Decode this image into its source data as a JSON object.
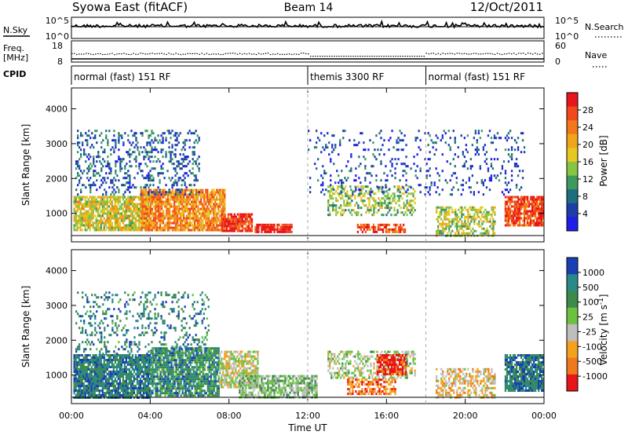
{
  "header": {
    "station": "Syowa East (fitACF)",
    "beam": "Beam 14",
    "date": "12/Oct/2011"
  },
  "sidebar": {
    "nsky_label": "N.Sky",
    "freq_label_1": "Freq.",
    "freq_label_2": "[MHz]",
    "cpid_label": "CPID",
    "nsearch_label": "N.Search",
    "nave_label": "Nave"
  },
  "panel_ticks": {
    "nsky_left": [
      "10^5",
      "10^0"
    ],
    "nsky_right": [
      "10^5",
      "10^0"
    ],
    "freq_left": [
      "18",
      "8"
    ],
    "freq_right": [
      "60",
      "0"
    ]
  },
  "cpid_segments": [
    {
      "label": "normal (fast) 151 RF",
      "start_h": 0
    },
    {
      "label": "themis 3300 RF",
      "start_h": 12
    },
    {
      "label": "normal (fast) 151 RF",
      "start_h": 18
    }
  ],
  "power_colorbar": {
    "label": "Power [dB]",
    "ticks": [
      "28",
      "24",
      "20",
      "16",
      "12",
      "8",
      "4"
    ],
    "colors": [
      "#e8151b",
      "#f0491a",
      "#f2781a",
      "#f1a51c",
      "#e6c820",
      "#86c445",
      "#3e9a5c",
      "#1d6e7f",
      "#1d3ea8",
      "#1e1ee8"
    ]
  },
  "velocity_colorbar": {
    "label": "Velocity [m s^-1]",
    "ticks": [
      "1000",
      "500",
      "100",
      "25",
      "-25",
      "-100",
      "-500",
      "-1000"
    ],
    "colors": [
      "#1a3fb5",
      "#2a8a8a",
      "#3d8a4c",
      "#6cc23e",
      "#bebebe",
      "#f4a21e",
      "#f07a1b",
      "#e8151b"
    ]
  },
  "chart_data": {
    "type": "heatmap",
    "xlabel": "Time UT",
    "ylabel": "Slant Range [km]",
    "x_tick_labels": [
      "00:00",
      "04:00",
      "08:00",
      "12:00",
      "16:00",
      "20:00",
      "00:00"
    ],
    "x_ticks_h": [
      0,
      4,
      8,
      12,
      16,
      20,
      24
    ],
    "y_tick_labels": [
      "1000",
      "2000",
      "3000",
      "4000"
    ],
    "y_ticks_km": [
      1000,
      2000,
      3000,
      4000
    ],
    "xlim_h": [
      0,
      24
    ],
    "ylim_km": [
      180,
      4600
    ],
    "mode_change_h": [
      12,
      18
    ],
    "power_blobs": [
      {
        "t0": 0.1,
        "t1": 3.9,
        "r0": 500,
        "r1": 1500,
        "level": 0.55,
        "density": 0.8
      },
      {
        "t0": 3.5,
        "t1": 7.8,
        "r0": 500,
        "r1": 1700,
        "level": 0.7,
        "density": 0.85
      },
      {
        "t0": 7.6,
        "t1": 9.2,
        "r0": 450,
        "r1": 1000,
        "level": 0.9,
        "density": 0.9
      },
      {
        "t0": 9.3,
        "t1": 11.2,
        "r0": 400,
        "r1": 700,
        "level": 0.95,
        "density": 0.85
      },
      {
        "t0": 0.2,
        "t1": 6.5,
        "r0": 1500,
        "r1": 3400,
        "level": 0.2,
        "density": 0.25
      },
      {
        "t0": 13,
        "t1": 17.5,
        "r0": 900,
        "r1": 1800,
        "level": 0.45,
        "density": 0.45
      },
      {
        "t0": 14.5,
        "t1": 17,
        "r0": 400,
        "r1": 700,
        "level": 0.85,
        "density": 0.7
      },
      {
        "t0": 18.5,
        "t1": 21.5,
        "r0": 350,
        "r1": 1200,
        "level": 0.5,
        "density": 0.55
      },
      {
        "t0": 22,
        "t1": 24,
        "r0": 600,
        "r1": 1500,
        "level": 0.85,
        "density": 0.85
      },
      {
        "t0": 12,
        "t1": 23,
        "r0": 1500,
        "r1": 3400,
        "level": 0.15,
        "density": 0.12
      }
    ],
    "velocity_blobs": [
      {
        "t0": 0.1,
        "t1": 4,
        "r0": 300,
        "r1": 1600,
        "level": 0.8,
        "density": 0.85
      },
      {
        "t0": 4,
        "t1": 7.5,
        "r0": 400,
        "r1": 1800,
        "level": 0.75,
        "density": 0.8
      },
      {
        "t0": 7.5,
        "t1": 9.5,
        "r0": 600,
        "r1": 1700,
        "level": 0.45,
        "density": 0.7
      },
      {
        "t0": 8.5,
        "t1": 12.5,
        "r0": 300,
        "r1": 1000,
        "level": 0.55,
        "density": 0.7
      },
      {
        "t0": 0.2,
        "t1": 7,
        "r0": 1600,
        "r1": 3400,
        "level": 0.78,
        "density": 0.2
      },
      {
        "t0": 13,
        "t1": 17.5,
        "r0": 900,
        "r1": 1700,
        "level": 0.5,
        "density": 0.45
      },
      {
        "t0": 15.5,
        "t1": 17,
        "r0": 1000,
        "r1": 1600,
        "level": 0.05,
        "density": 0.8
      },
      {
        "t0": 14,
        "t1": 16.5,
        "r0": 400,
        "r1": 900,
        "level": 0.2,
        "density": 0.6
      },
      {
        "t0": 18.5,
        "t1": 21.5,
        "r0": 350,
        "r1": 1200,
        "level": 0.35,
        "density": 0.5
      },
      {
        "t0": 22,
        "t1": 24,
        "r0": 500,
        "r1": 1600,
        "level": 0.8,
        "density": 0.85
      }
    ]
  }
}
